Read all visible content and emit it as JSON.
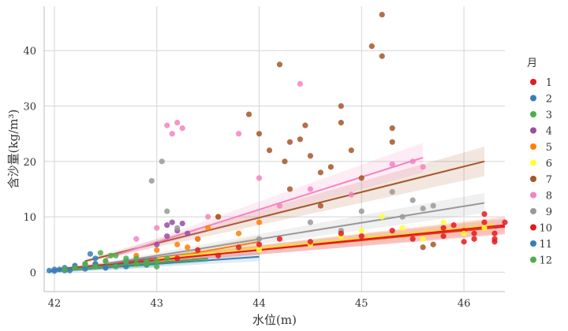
{
  "chart_data": {
    "type": "scatter",
    "xlabel": "水位(m)",
    "ylabel": "含沙量(kg/m³)",
    "xlim": [
      41.9,
      46.4
    ],
    "ylim": [
      -3.5,
      48
    ],
    "xticks": [
      "42",
      "43",
      "44",
      "45",
      "46"
    ],
    "yticks": [
      "0",
      "10",
      "20",
      "30",
      "40"
    ],
    "grid": true,
    "legend_position": "right",
    "legend_title": "月",
    "series": [
      {
        "name": "1",
        "color": "#e41a1c",
        "trend": [
          [
            42.0,
            0.5
          ],
          [
            46.4,
            8.2
          ]
        ],
        "points": [
          [
            45.8,
            6.5
          ],
          [
            46.0,
            7.5
          ],
          [
            46.1,
            6.0
          ],
          [
            46.2,
            9.0
          ],
          [
            46.2,
            10.5
          ],
          [
            46.3,
            7.0
          ],
          [
            46.3,
            5.5
          ],
          [
            46.4,
            9.0
          ],
          [
            45.9,
            8.5
          ],
          [
            46.0,
            5.5
          ]
        ]
      },
      {
        "name": "2",
        "color": "#377eb8",
        "trend": [
          [
            42.0,
            0.2
          ],
          [
            44.0,
            2.8
          ]
        ],
        "points": [
          [
            41.95,
            0.3
          ],
          [
            42.0,
            0.5
          ],
          [
            42.1,
            0.3
          ],
          [
            42.2,
            1.0
          ],
          [
            42.3,
            1.5
          ],
          [
            42.35,
            3.3
          ],
          [
            42.4,
            2.5
          ],
          [
            42.5,
            0.8
          ],
          [
            42.6,
            1.2
          ],
          [
            42.7,
            2.0
          ]
        ]
      },
      {
        "name": "3",
        "color": "#4daf4a",
        "trend": [
          [
            42.2,
            0.5
          ],
          [
            43.5,
            2.5
          ]
        ],
        "points": [
          [
            42.3,
            1.0
          ],
          [
            42.4,
            1.5
          ],
          [
            42.5,
            2.0
          ],
          [
            42.6,
            1.0
          ],
          [
            42.7,
            2.5
          ],
          [
            42.8,
            1.5
          ],
          [
            42.9,
            2.0
          ],
          [
            43.0,
            1.0
          ],
          [
            43.1,
            2.5
          ],
          [
            42.55,
            3.0
          ]
        ]
      },
      {
        "name": "4",
        "color": "#984ea3",
        "trend": [
          [
            42.5,
            1.5
          ],
          [
            43.4,
            3.5
          ]
        ],
        "points": [
          [
            43.1,
            8.5
          ],
          [
            43.15,
            9.0
          ],
          [
            43.2,
            7.5
          ],
          [
            43.25,
            8.8
          ],
          [
            43.3,
            7.0
          ],
          [
            43.0,
            5.0
          ],
          [
            43.4,
            6.0
          ],
          [
            43.1,
            6.5
          ]
        ]
      },
      {
        "name": "5",
        "color": "#ff7f00",
        "trend": [
          [
            42.6,
            1.0
          ],
          [
            44.0,
            5.5
          ]
        ],
        "points": [
          [
            42.8,
            3.0
          ],
          [
            43.0,
            4.0
          ],
          [
            43.2,
            5.0
          ],
          [
            43.4,
            6.0
          ],
          [
            43.5,
            8.0
          ],
          [
            43.6,
            10.0
          ],
          [
            43.8,
            7.0
          ],
          [
            44.0,
            9.0
          ],
          [
            43.3,
            4.5
          ]
        ]
      },
      {
        "name": "6",
        "color": "#ffff33",
        "trend": [
          [
            43.0,
            2.5
          ],
          [
            46.3,
            8.5
          ]
        ],
        "points": [
          [
            44.5,
            5.0
          ],
          [
            44.8,
            6.5
          ],
          [
            45.0,
            7.5
          ],
          [
            45.2,
            10.0
          ],
          [
            45.4,
            8.0
          ],
          [
            45.6,
            6.0
          ],
          [
            45.8,
            9.0
          ],
          [
            46.0,
            7.0
          ],
          [
            46.2,
            8.0
          ],
          [
            44.0,
            4.0
          ]
        ]
      },
      {
        "name": "7",
        "color": "#a65628",
        "trend": [
          [
            42.3,
            2.0
          ],
          [
            46.2,
            20.0
          ]
        ],
        "points": [
          [
            43.9,
            28.5
          ],
          [
            44.0,
            25.0
          ],
          [
            44.1,
            22.0
          ],
          [
            44.2,
            37.5
          ],
          [
            44.25,
            20.0
          ],
          [
            44.3,
            23.5
          ],
          [
            44.4,
            24.0
          ],
          [
            44.45,
            26.5
          ],
          [
            44.5,
            21.0
          ],
          [
            44.6,
            18.0
          ],
          [
            44.7,
            19.0
          ],
          [
            44.8,
            30.0
          ],
          [
            44.8,
            27.0
          ],
          [
            44.9,
            22.0
          ],
          [
            45.1,
            40.8
          ],
          [
            45.2,
            46.5
          ],
          [
            45.2,
            39.0
          ],
          [
            45.3,
            26.0
          ],
          [
            45.3,
            23.5
          ],
          [
            45.0,
            17.0
          ],
          [
            44.3,
            15.0
          ],
          [
            44.6,
            12.0
          ],
          [
            43.6,
            10.0
          ],
          [
            45.6,
            4.5
          ],
          [
            45.7,
            5.0
          ]
        ]
      },
      {
        "name": "8",
        "color": "#f781bf",
        "trend": [
          [
            42.5,
            2.5
          ],
          [
            45.6,
            20.7
          ]
        ],
        "points": [
          [
            43.1,
            26.5
          ],
          [
            43.15,
            25.0
          ],
          [
            43.2,
            27.0
          ],
          [
            43.25,
            26.0
          ],
          [
            43.8,
            25.0
          ],
          [
            44.4,
            34.0
          ],
          [
            45.3,
            19.5
          ],
          [
            45.5,
            20.0
          ],
          [
            45.6,
            19.0
          ],
          [
            44.2,
            12.0
          ],
          [
            44.5,
            15.0
          ],
          [
            44.9,
            14.0
          ],
          [
            43.0,
            8.0
          ],
          [
            42.8,
            6.0
          ],
          [
            43.5,
            10.0
          ],
          [
            44.0,
            17.0
          ]
        ]
      },
      {
        "name": "9",
        "color": "#999999",
        "trend": [
          [
            42.5,
            1.5
          ],
          [
            46.2,
            12.5
          ]
        ],
        "points": [
          [
            42.95,
            16.5
          ],
          [
            43.05,
            20.0
          ],
          [
            43.1,
            11.0
          ],
          [
            43.2,
            8.0
          ],
          [
            44.0,
            6.0
          ],
          [
            44.5,
            9.0
          ],
          [
            45.0,
            11.0
          ],
          [
            45.3,
            14.5
          ],
          [
            45.5,
            13.0
          ],
          [
            45.6,
            11.5
          ],
          [
            45.7,
            12.0
          ],
          [
            45.4,
            10.0
          ],
          [
            44.8,
            7.5
          ]
        ]
      },
      {
        "name": "10",
        "color": "#e41a1c",
        "trend": [
          [
            42.0,
            0.3
          ],
          [
            46.4,
            8.5
          ]
        ],
        "points": [
          [
            43.6,
            3.0
          ],
          [
            43.8,
            4.5
          ],
          [
            44.0,
            5.0
          ],
          [
            44.2,
            6.0
          ],
          [
            44.5,
            5.5
          ],
          [
            44.8,
            7.0
          ],
          [
            45.0,
            6.5
          ],
          [
            45.3,
            7.5
          ],
          [
            45.5,
            6.0
          ],
          [
            45.8,
            8.0
          ],
          [
            46.1,
            7.0
          ],
          [
            46.3,
            6.0
          ],
          [
            43.2,
            2.5
          ],
          [
            43.4,
            4.0
          ]
        ]
      },
      {
        "name": "11",
        "color": "#377eb8",
        "trend": [
          [
            41.95,
            0.2
          ],
          [
            43.0,
            1.5
          ]
        ],
        "points": [
          [
            42.0,
            0.2
          ],
          [
            42.05,
            0.5
          ],
          [
            42.1,
            0.8
          ],
          [
            42.15,
            0.3
          ],
          [
            42.2,
            1.2
          ],
          [
            42.3,
            0.6
          ],
          [
            42.4,
            1.5
          ],
          [
            42.5,
            0.8
          ],
          [
            42.7,
            1.0
          ],
          [
            42.9,
            1.3
          ]
        ]
      },
      {
        "name": "12",
        "color": "#4daf4a",
        "trend": [
          [
            42.0,
            0.3
          ],
          [
            43.0,
            1.8
          ]
        ],
        "points": [
          [
            42.1,
            0.5
          ],
          [
            42.2,
            0.8
          ],
          [
            42.3,
            1.5
          ],
          [
            42.4,
            1.0
          ],
          [
            42.5,
            2.0
          ],
          [
            42.6,
            3.0
          ],
          [
            42.7,
            1.8
          ],
          [
            42.8,
            2.5
          ],
          [
            42.9,
            1.5
          ],
          [
            43.0,
            2.0
          ],
          [
            42.45,
            3.5
          ]
        ]
      }
    ]
  }
}
